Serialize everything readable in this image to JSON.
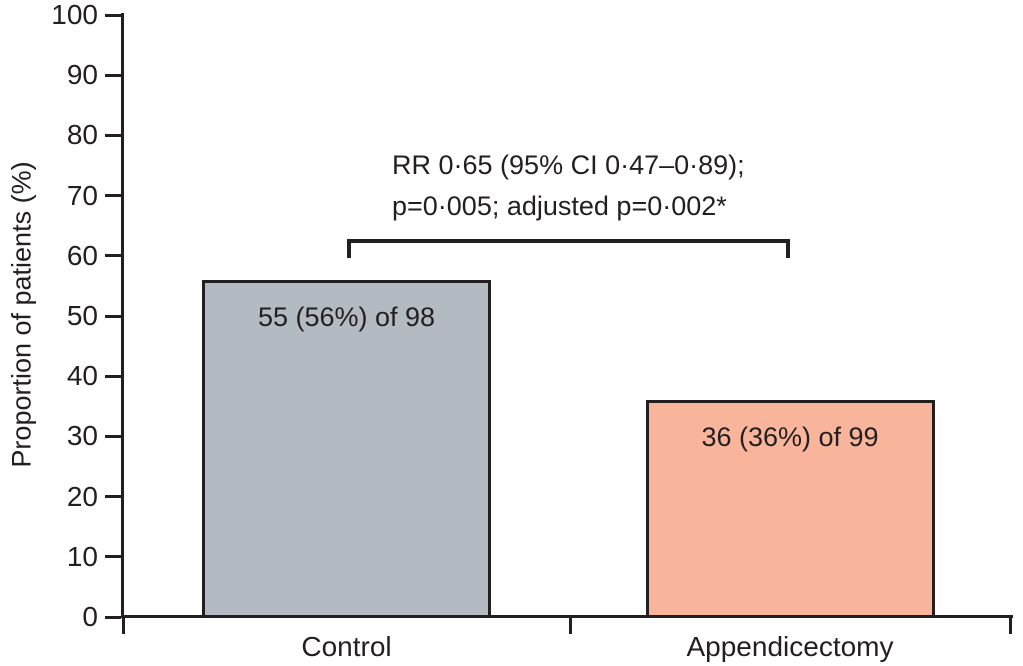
{
  "chart_data": {
    "type": "bar",
    "title": "",
    "xlabel": "",
    "ylabel": "Proportion of patients (%)",
    "ylim": [
      0,
      100
    ],
    "yticks": [
      0,
      10,
      20,
      30,
      40,
      50,
      60,
      70,
      80,
      90,
      100
    ],
    "categories": [
      "Control",
      "Appendicectomy"
    ],
    "values": [
      56,
      36
    ],
    "bar_labels": [
      "55 (56%) of 98",
      "36 (36%) of 99"
    ],
    "bar_colors": [
      "#b3bac1",
      "#f9b59c"
    ],
    "grid": false,
    "legend": false,
    "annotation": {
      "lines": [
        "RR 0·65 (95% CI 0·47–0·89);",
        "p=0·005; adjusted p=0·002*"
      ]
    },
    "colors": {
      "axis": "#231f20",
      "text": "#231f20",
      "control_bar": "#b3bac1",
      "appendicectomy_bar": "#f9b59c"
    }
  }
}
